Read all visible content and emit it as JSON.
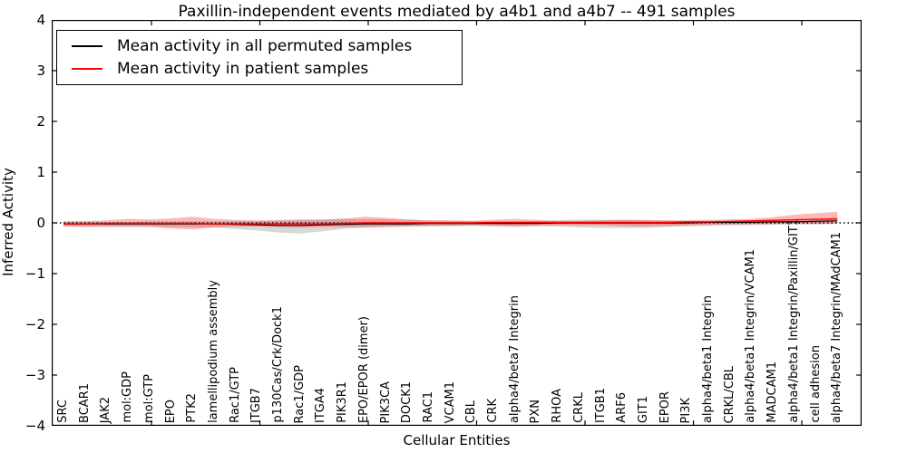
{
  "figure": {
    "title": "Paxillin-independent events mediated by a4b1 and a4b7 -- 491 samples",
    "xlabel": "Cellular Entities",
    "ylabel": "Inferred Activity"
  },
  "legend": {
    "entries": [
      {
        "label": "Mean activity in all permuted samples",
        "color": "#000000"
      },
      {
        "label": "Mean activity in patient samples",
        "color": "#ff0000"
      }
    ]
  },
  "chart_data": {
    "type": "line",
    "title": "Paxillin-independent events mediated by a4b1 and a4b7 -- 491 samples",
    "xlabel": "Cellular Entities",
    "ylabel": "Inferred Activity",
    "ylim": [
      -4,
      4
    ],
    "yticks": [
      4,
      3,
      2,
      1,
      0,
      -1,
      -2,
      -3,
      -4
    ],
    "yticklabels": [
      "4",
      "3",
      "2",
      "1",
      "0",
      "−1",
      "−2",
      "−3",
      "−4"
    ],
    "grid": false,
    "legend_position": "upper left",
    "zero_reference_line": {
      "y": 0,
      "style": "dotted",
      "color": "#000000"
    },
    "categories": [
      "SRC",
      "BCAR1",
      "JAK2",
      "mol:GDP",
      "mol:GTP",
      "EPO",
      "PTK2",
      "lamellipodium assembly",
      "Rac1/GTP",
      "ITGB7",
      "p130Cas/Crk/Dock1",
      "Rac1/GDP",
      "ITGA4",
      "PIK3R1",
      "EPO/EPOR (dimer)",
      "PIK3CA",
      "DOCK1",
      "RAC1",
      "VCAM1",
      "CBL",
      "CRK",
      "alpha4/beta7 Integrin",
      "PXN",
      "RHOA",
      "CRKL",
      "ITGB1",
      "ARF6",
      "GIT1",
      "EPOR",
      "PI3K",
      "alpha4/beta1 Integrin",
      "CRKL/CBL",
      "alpha4/beta1 Integrin/VCAM1",
      "MADCAM1",
      "alpha4/beta1 Integrin/Paxillin/GIT1",
      "cell adhesion",
      "alpha4/beta7 Integrin/MAdCAM1"
    ],
    "series": [
      {
        "name": "Mean activity in all permuted samples",
        "color": "#000000",
        "band_color": "rgba(110,110,110,0.28)",
        "values": [
          -0.02,
          -0.02,
          -0.02,
          -0.02,
          -0.02,
          -0.02,
          -0.02,
          -0.02,
          -0.03,
          -0.04,
          -0.05,
          -0.05,
          -0.04,
          -0.03,
          -0.02,
          -0.02,
          -0.02,
          -0.01,
          -0.01,
          -0.01,
          -0.01,
          -0.01,
          -0.01,
          0.0,
          0.0,
          0.0,
          0.0,
          0.0,
          0.0,
          0.0,
          0.01,
          0.01,
          0.01,
          0.02,
          0.02,
          0.03,
          0.04
        ],
        "band_upper": [
          0.02,
          0.02,
          0.02,
          0.02,
          0.03,
          0.03,
          0.03,
          0.03,
          0.03,
          0.03,
          0.04,
          0.05,
          0.07,
          0.08,
          0.07,
          0.07,
          0.06,
          0.05,
          0.04,
          0.04,
          0.03,
          0.03,
          0.04,
          0.05,
          0.06,
          0.06,
          0.06,
          0.05,
          0.05,
          0.04,
          0.04,
          0.04,
          0.04,
          0.05,
          0.06,
          0.07,
          0.08
        ],
        "band_lower": [
          -0.07,
          -0.07,
          -0.07,
          -0.07,
          -0.07,
          -0.08,
          -0.08,
          -0.09,
          -0.12,
          -0.15,
          -0.19,
          -0.21,
          -0.17,
          -0.12,
          -0.09,
          -0.08,
          -0.07,
          -0.07,
          -0.06,
          -0.06,
          -0.05,
          -0.06,
          -0.06,
          -0.07,
          -0.09,
          -0.1,
          -0.1,
          -0.1,
          -0.08,
          -0.07,
          -0.06,
          -0.05,
          -0.04,
          -0.04,
          -0.03,
          -0.03,
          -0.02
        ]
      },
      {
        "name": "Mean activity in patient samples",
        "color": "#ff0000",
        "band_color": "rgba(255,0,0,0.28)",
        "values": [
          -0.02,
          -0.02,
          -0.01,
          -0.01,
          -0.01,
          -0.01,
          -0.01,
          -0.02,
          -0.02,
          -0.02,
          -0.02,
          -0.02,
          -0.02,
          -0.01,
          0.0,
          0.0,
          0.0,
          0.0,
          0.0,
          0.0,
          0.01,
          0.01,
          0.01,
          0.01,
          0.01,
          0.01,
          0.01,
          0.01,
          0.01,
          0.02,
          0.02,
          0.03,
          0.04,
          0.05,
          0.06,
          0.07,
          0.08
        ],
        "band_upper": [
          0.03,
          0.04,
          0.05,
          0.08,
          0.07,
          0.09,
          0.12,
          0.08,
          0.06,
          0.05,
          0.06,
          0.07,
          0.06,
          0.08,
          0.12,
          0.1,
          0.07,
          0.05,
          0.05,
          0.04,
          0.06,
          0.08,
          0.06,
          0.04,
          0.04,
          0.05,
          0.06,
          0.06,
          0.05,
          0.05,
          0.06,
          0.07,
          0.08,
          0.11,
          0.16,
          0.19,
          0.22
        ],
        "band_lower": [
          -0.07,
          -0.08,
          -0.08,
          -0.08,
          -0.08,
          -0.11,
          -0.13,
          -0.09,
          -0.07,
          -0.07,
          -0.08,
          -0.09,
          -0.08,
          -0.08,
          -0.09,
          -0.08,
          -0.07,
          -0.06,
          -0.06,
          -0.05,
          -0.07,
          -0.08,
          -0.06,
          -0.05,
          -0.05,
          -0.05,
          -0.06,
          -0.07,
          -0.06,
          -0.05,
          -0.04,
          -0.03,
          -0.03,
          -0.02,
          -0.02,
          -0.02,
          -0.01
        ]
      }
    ],
    "colors": {
      "background": "#ffffff",
      "axis": "#000000",
      "permuted_line": "#000000",
      "patient_line": "#ff0000"
    }
  }
}
